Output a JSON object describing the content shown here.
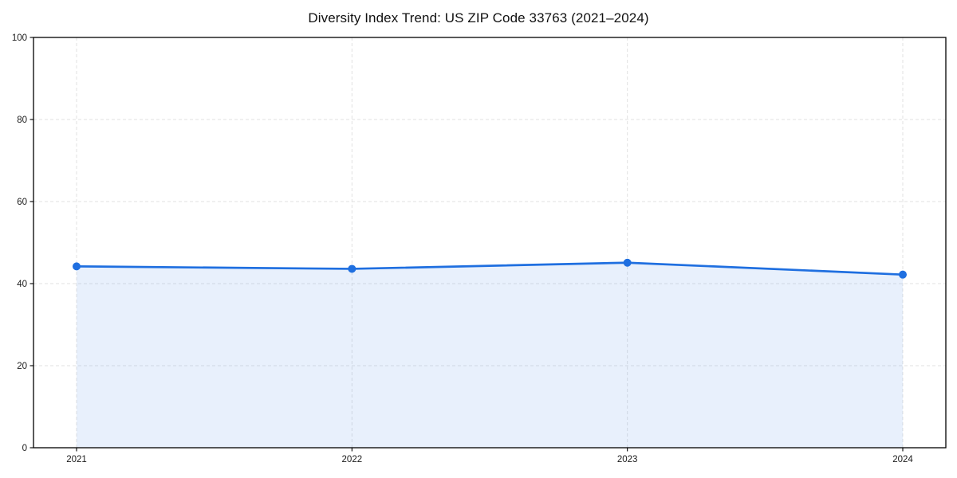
{
  "chart_data": {
    "type": "line",
    "categories": [
      "2021",
      "2022",
      "2023",
      "2024"
    ],
    "values": [
      44.2,
      43.6,
      45.1,
      42.2
    ],
    "title": "Diversity Index Trend: US ZIP Code 33763 (2021–2024)",
    "xlabel": "",
    "ylabel": "",
    "ylim": [
      0,
      100
    ],
    "yticks": [
      0,
      20,
      40,
      60,
      80,
      100
    ],
    "grid": true,
    "grid_style": "dashed",
    "legend": false,
    "area_fill": true,
    "marker": "circle",
    "colors": {
      "line": "#1f6fe0",
      "marker": "#1f6fe0",
      "area_fill": "#1f6fe0",
      "area_fill_opacity": 0.1,
      "grid": "#e2e2e2",
      "spine": "#000000",
      "tick_text": "#1a1a1a",
      "background": "#ffffff"
    }
  }
}
